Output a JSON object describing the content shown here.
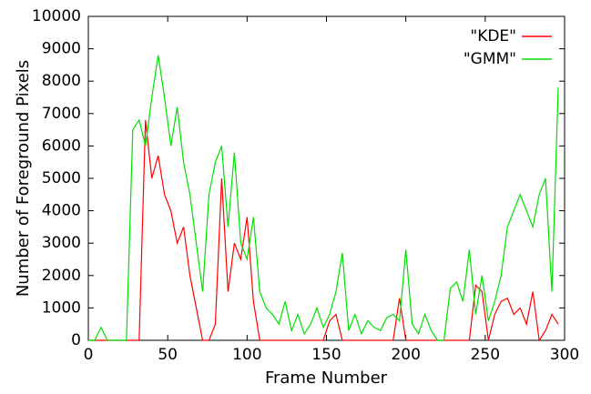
{
  "chart_data": {
    "type": "line",
    "xlabel": "Frame Number",
    "ylabel": "Number of Foreground Pixels",
    "x": [
      0,
      4,
      8,
      12,
      16,
      20,
      24,
      28,
      32,
      36,
      40,
      44,
      48,
      52,
      56,
      60,
      64,
      68,
      72,
      76,
      80,
      84,
      88,
      92,
      96,
      100,
      104,
      108,
      112,
      116,
      120,
      124,
      128,
      132,
      136,
      140,
      144,
      148,
      152,
      156,
      160,
      164,
      168,
      172,
      176,
      180,
      184,
      188,
      192,
      196,
      200,
      204,
      208,
      212,
      216,
      220,
      224,
      228,
      232,
      236,
      240,
      244,
      248,
      252,
      256,
      260,
      264,
      268,
      272,
      276,
      280,
      284,
      288,
      292,
      296
    ],
    "series": [
      {
        "name": "\"KDE\"",
        "color": "#ff0000",
        "values": [
          0,
          0,
          0,
          0,
          0,
          0,
          0,
          0,
          0,
          6800,
          5000,
          5700,
          4500,
          4000,
          3000,
          3500,
          2000,
          1000,
          0,
          0,
          500,
          5000,
          1500,
          3000,
          2500,
          3800,
          1200,
          0,
          0,
          0,
          0,
          0,
          0,
          0,
          0,
          0,
          0,
          0,
          600,
          800,
          0,
          0,
          0,
          0,
          0,
          0,
          0,
          0,
          0,
          1300,
          0,
          0,
          0,
          0,
          0,
          0,
          0,
          0,
          0,
          0,
          0,
          1700,
          1500,
          0,
          800,
          1200,
          1300,
          800,
          1000,
          500,
          1500,
          0,
          300,
          800,
          500
        ]
      },
      {
        "name": "\"GMM\"",
        "color": "#00e000",
        "values": [
          0,
          0,
          400,
          0,
          0,
          0,
          0,
          6500,
          6800,
          6000,
          7500,
          8800,
          7500,
          6000,
          7200,
          5500,
          4500,
          3000,
          1500,
          4500,
          5500,
          6000,
          3500,
          5800,
          3000,
          2500,
          3800,
          1500,
          1000,
          800,
          500,
          1200,
          300,
          800,
          200,
          500,
          1000,
          400,
          800,
          1500,
          2700,
          300,
          800,
          200,
          600,
          400,
          300,
          700,
          800,
          600,
          2800,
          500,
          200,
          800,
          300,
          0,
          0,
          1600,
          1800,
          1200,
          2800,
          800,
          2000,
          600,
          1200,
          2000,
          3500,
          4000,
          4500,
          4000,
          3500,
          4500,
          5000,
          1500,
          7800
        ]
      }
    ],
    "xlim": [
      0,
      300
    ],
    "xticks": [
      0,
      50,
      100,
      150,
      200,
      250,
      300
    ],
    "ylim": [
      0,
      10000
    ],
    "yticks": [
      0,
      1000,
      2000,
      3000,
      4000,
      5000,
      6000,
      7000,
      8000,
      9000,
      10000
    ],
    "grid": false,
    "legend": "upper right"
  }
}
